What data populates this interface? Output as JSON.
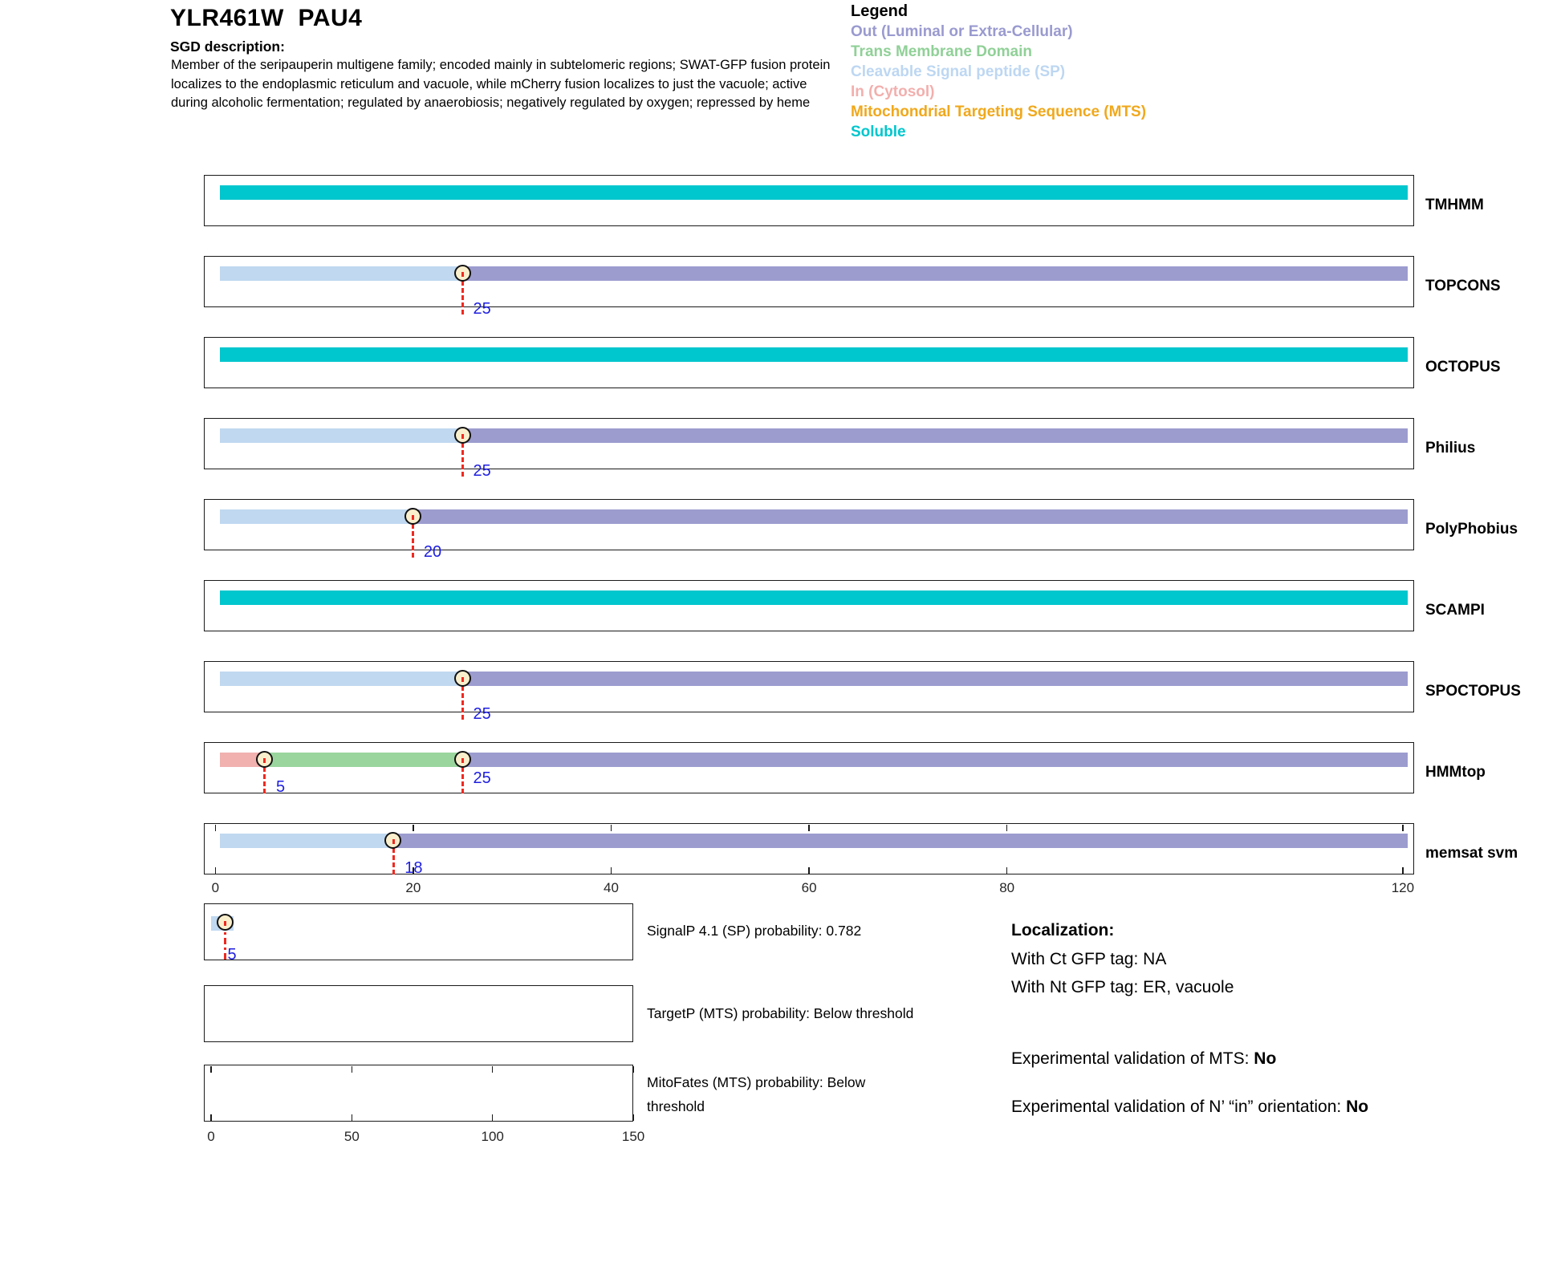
{
  "header": {
    "title": "YLR461W  PAU4",
    "sgd_label": "SGD description:",
    "description": "Member of the seripauperin multigene family; encoded mainly in subtelomeric regions; SWAT-GFP fusion protein localizes to the endoplasmic reticulum and vacuole, while mCherry fusion localizes to just the vacuole; active during alcoholic fermentation; regulated by anaerobiosis; negatively regulated by oxygen; repressed by heme"
  },
  "legend": {
    "title": "Legend",
    "items": [
      {
        "label": "Out (Luminal or Extra-Cellular)",
        "color": "#9A9AD0"
      },
      {
        "label": "Trans Membrane Domain",
        "color": "#90D097"
      },
      {
        "label": "Cleavable Signal peptide (SP)",
        "color": "#BDD7F2"
      },
      {
        "label": "In (Cytosol)",
        "color": "#F2AFAD"
      },
      {
        "label": "Mitochondrial Targeting Sequence (MTS)",
        "color": "#F0A81C"
      },
      {
        "label": "Soluble",
        "color": "#00C6CD"
      }
    ]
  },
  "chart_data": {
    "type": "topology-tracks",
    "residue_axis": {
      "tick_values": [
        0,
        20,
        40,
        60,
        80,
        120
      ],
      "tick_labels": [
        "0",
        "20",
        "40",
        "60",
        "80",
        "120"
      ],
      "min": 0,
      "max": 120.5
    },
    "region_colors": {
      "Out": "#9C9CCF",
      "TM": "#9AD59E",
      "SP": "#C0D8F0",
      "In": "#F0B1AF",
      "MTS": "#F0A81C",
      "Soluble": "#00C6CD"
    },
    "marker_style": {
      "line_color": "#EF2920",
      "circle_fill": "#FAEFCD",
      "label_color": "#1E1EE0"
    },
    "tracks": [
      {
        "label": "TMHMM",
        "segments": [
          {
            "region": "Soluble",
            "from": 0.5,
            "to": 120.5
          }
        ],
        "markers": []
      },
      {
        "label": "TOPCONS",
        "segments": [
          {
            "region": "SP",
            "from": 0.5,
            "to": 25
          },
          {
            "region": "Out",
            "from": 25,
            "to": 120.5
          }
        ],
        "markers": [
          {
            "pos": 25,
            "text": "25",
            "placement": "below"
          }
        ]
      },
      {
        "label": "OCTOPUS",
        "segments": [
          {
            "region": "Soluble",
            "from": 0.5,
            "to": 120.5
          }
        ],
        "markers": []
      },
      {
        "label": "Philius",
        "segments": [
          {
            "region": "SP",
            "from": 0.5,
            "to": 25
          },
          {
            "region": "Out",
            "from": 25,
            "to": 120.5
          }
        ],
        "markers": [
          {
            "pos": 25,
            "text": "25",
            "placement": "below"
          }
        ]
      },
      {
        "label": "PolyPhobius",
        "segments": [
          {
            "region": "SP",
            "from": 0.5,
            "to": 20
          },
          {
            "region": "Out",
            "from": 20,
            "to": 120.5
          }
        ],
        "markers": [
          {
            "pos": 20,
            "text": "20",
            "placement": "below"
          }
        ]
      },
      {
        "label": "SCAMPI",
        "segments": [
          {
            "region": "Soluble",
            "from": 0.5,
            "to": 120.5
          }
        ],
        "markers": []
      },
      {
        "label": "SPOCTOPUS",
        "segments": [
          {
            "region": "SP",
            "from": 0.5,
            "to": 25
          },
          {
            "region": "Out",
            "from": 25,
            "to": 120.5
          }
        ],
        "markers": [
          {
            "pos": 25,
            "text": "25",
            "placement": "below"
          }
        ]
      },
      {
        "label": "HMMtop",
        "segments": [
          {
            "region": "In",
            "from": 0.5,
            "to": 5
          },
          {
            "region": "TM",
            "from": 5,
            "to": 25
          },
          {
            "region": "Out",
            "from": 25,
            "to": 120.5
          }
        ],
        "markers": [
          {
            "pos": 5,
            "text": "5",
            "placement": "inside"
          },
          {
            "pos": 25,
            "text": "25",
            "placement": "inside_high"
          }
        ]
      },
      {
        "label": "memsat svm",
        "segments": [
          {
            "region": "SP",
            "from": 0.5,
            "to": 18
          },
          {
            "region": "Out",
            "from": 18,
            "to": 120.5
          }
        ],
        "markers": [
          {
            "pos": 18,
            "text": "18",
            "placement": "inside"
          }
        ],
        "box_ticks": true
      }
    ],
    "bottom_plots": [
      {
        "caption": "SignalP 4.1 (SP) probability: 0.782",
        "segments": [
          {
            "region": "SP",
            "from": 0,
            "to": 8
          }
        ],
        "markers": [
          {
            "pos": 5,
            "text": "5",
            "placement": "inside",
            "style": "dashdot"
          }
        ]
      },
      {
        "caption": "TargetP (MTS) probability: Below threshold",
        "segments": [],
        "markers": []
      },
      {
        "caption": "MitoFates (MTS) probability: Below threshold",
        "segments": [],
        "markers": [],
        "axis_tick_values": [
          0,
          50,
          100,
          150
        ],
        "axis_tick_labels": [
          "0",
          "50",
          "100",
          "150"
        ]
      }
    ]
  },
  "localization": {
    "title": "Localization:",
    "ct_line": "With Ct GFP tag: NA",
    "nt_line": "With Nt GFP tag: ER, vacuole",
    "mts_prefix": "Experimental validation of MTS: ",
    "mts_value": "No",
    "orientation_prefix": "Experimental validation of N’ “in” orientation: ",
    "orientation_value": "No"
  }
}
